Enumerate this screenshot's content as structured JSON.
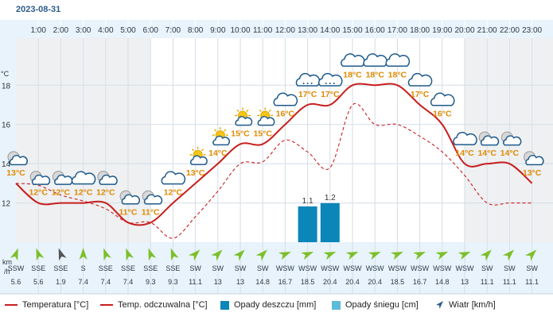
{
  "date": "2023-08-31",
  "y_unit": "°C",
  "wind_unit_top": "km",
  "wind_unit_bottom": "/h",
  "colors": {
    "temperature": "#c81e1e",
    "feels_like": "#c81e1e",
    "rain": "#0a86b8",
    "snow": "#5bbbd8",
    "wind_arrow": "#7cbf2a",
    "label_orange": "#e08a00",
    "night_bg": "#eef0f2",
    "header_bg": "#e8f3fb",
    "wind_band_bg": "#e8f3fb"
  },
  "legend": {
    "temperature": "Temperatura [°C]",
    "feels_like": "Temp. odczuwalna [°C]",
    "rain": "Opady deszczu [mm]",
    "snow": "Opady śniegu [cm]",
    "wind": "Wiatr [km/h]"
  },
  "chart_data": {
    "type": "line",
    "hours": [
      "1:00",
      "2:00",
      "3:00",
      "4:00",
      "5:00",
      "6:00",
      "7:00",
      "8:00",
      "9:00",
      "10:00",
      "11:00",
      "12:00",
      "13:00",
      "14:00",
      "15:00",
      "16:00",
      "17:00",
      "18:00",
      "19:00",
      "20:00",
      "21:00",
      "22:00",
      "23:00"
    ],
    "y_ticks": [
      12,
      14,
      16,
      18
    ],
    "ylim": [
      10.0,
      20.4
    ],
    "temperature": [
      13,
      12,
      12,
      12,
      12,
      11,
      11,
      12,
      13,
      14,
      15,
      15,
      16,
      17,
      17,
      18,
      18,
      18,
      17,
      16,
      14,
      14,
      14,
      13
    ],
    "temperature_labels": [
      "13°C",
      "12°C",
      "12°C",
      "12°C",
      "12°C",
      "11°C",
      "11°C",
      "12°C",
      "13°C",
      "14°C",
      "15°C",
      "15°C",
      "16°C",
      "17°C",
      "17°C",
      "18°C",
      "18°C",
      "18°C",
      "17°C",
      "16°C",
      "14°C",
      "14°C",
      "14°C",
      "13°C"
    ],
    "feels_like": [
      13.0,
      12.9,
      12.4,
      12.1,
      11.7,
      11.0,
      11.0,
      10.2,
      11.3,
      12.6,
      14.0,
      14.1,
      15.2,
      14.6,
      13.8,
      17.0,
      16.0,
      16.0,
      15.4,
      14.6,
      13.4,
      12.0,
      12.0,
      12.0
    ],
    "rain": [
      null,
      null,
      null,
      null,
      null,
      null,
      null,
      null,
      null,
      null,
      null,
      null,
      null,
      1.1,
      1.2,
      null,
      null,
      null,
      null,
      null,
      null,
      null,
      null,
      null
    ],
    "rain_labels": [
      "",
      "",
      "",
      "",
      "",
      "",
      "",
      "",
      "",
      "",
      "",
      "",
      "",
      "1.1",
      "1.2",
      "",
      "",
      "",
      "",
      "",
      "",
      "",
      "",
      ""
    ],
    "wind_dirs": [
      "SSW",
      "SSE",
      "SSE",
      "S",
      "SSE",
      "SSE",
      "SSE",
      "SSE",
      "SW",
      "SW",
      "SW",
      "SW",
      "WSW",
      "WSW",
      "WSW",
      "WSW",
      "WSW",
      "WSW",
      "WSW",
      "WSW",
      "WSW",
      "SW",
      "SW",
      "SW"
    ],
    "wind_speeds": [
      "5.6",
      "5.6",
      "1.9",
      "7.4",
      "7.4",
      "7.4",
      "9.3",
      "9.3",
      "11.1",
      "13",
      "13",
      "14.8",
      "16.7",
      "18.5",
      "20.4",
      "20.4",
      "20.4",
      "18.5",
      "16.7",
      "14.8",
      "13",
      "11.1",
      "11.1",
      "11.1"
    ],
    "wind_angles": [
      200,
      160,
      160,
      180,
      160,
      160,
      160,
      160,
      225,
      225,
      225,
      225,
      248,
      248,
      248,
      248,
      248,
      248,
      248,
      248,
      248,
      225,
      225,
      225
    ],
    "wind_arrow_grey": [
      false,
      false,
      true,
      false,
      false,
      false,
      false,
      false,
      false,
      false,
      false,
      false,
      false,
      false,
      false,
      false,
      false,
      false,
      false,
      false,
      false,
      false,
      false,
      false
    ],
    "icons": [
      "moon-cloud-icon",
      "moon-cloud-icon",
      "moon-cloud-icon",
      "cloud-icon",
      "moon-cloud-icon",
      "moon-cloud-icon",
      "moon-cloud-icon",
      "cloud-icon",
      "sun-cloud-icon",
      "sun-cloud-icon",
      "sun-cloud-icon",
      "sun-cloud-icon",
      "cloud-icon",
      "rain-cloud-icon",
      "rain-cloud-icon",
      "cloud-icon",
      "cloud-icon",
      "cloud-icon",
      "cloud-icon",
      "cloud-icon",
      "cloud-icon",
      "moon-cloud-icon",
      "moon-cloud-icon",
      "moon-cloud-icon"
    ]
  }
}
